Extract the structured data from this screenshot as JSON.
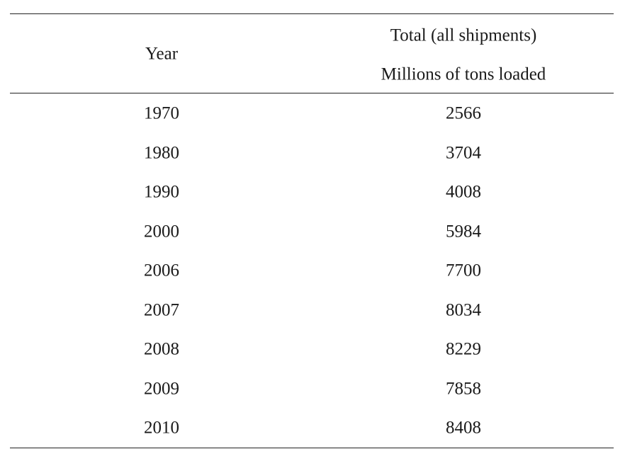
{
  "table": {
    "headers": {
      "year": "Year",
      "total_line1": "Total (all shipments)",
      "total_line2": "Millions of tons loaded"
    },
    "rows": [
      {
        "year": "1970",
        "value": "2566"
      },
      {
        "year": "1980",
        "value": "3704"
      },
      {
        "year": "1990",
        "value": "4008"
      },
      {
        "year": "2000",
        "value": "5984"
      },
      {
        "year": "2006",
        "value": "7700"
      },
      {
        "year": "2007",
        "value": "8034"
      },
      {
        "year": "2008",
        "value": "8229"
      },
      {
        "year": "2009",
        "value": "7858"
      },
      {
        "year": "2010",
        "value": "8408"
      }
    ]
  }
}
